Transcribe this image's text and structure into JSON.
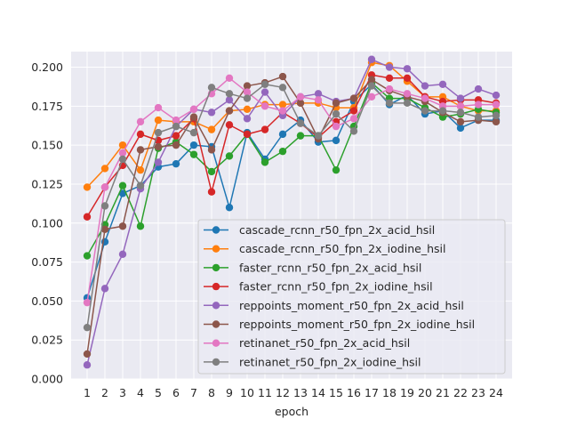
{
  "chart_data": {
    "type": "line",
    "title": "",
    "xlabel": "epoch",
    "ylabel": "",
    "x": [
      1,
      2,
      3,
      4,
      5,
      6,
      7,
      8,
      9,
      10,
      11,
      12,
      13,
      14,
      15,
      16,
      17,
      18,
      19,
      20,
      21,
      22,
      23,
      24
    ],
    "xlim": [
      0.1,
      24.9
    ],
    "ylim": [
      0.0,
      0.21
    ],
    "yticks": [
      "0.000",
      "0.025",
      "0.050",
      "0.075",
      "0.100",
      "0.125",
      "0.150",
      "0.175",
      "0.200"
    ],
    "grid": true,
    "legend_position": "lower-right",
    "series": [
      {
        "name": "cascade_rcnn_r50_fpn_2x_acid_hsil",
        "color": "#1f77b4",
        "values": [
          0.052,
          0.088,
          0.119,
          0.124,
          0.136,
          0.138,
          0.15,
          0.149,
          0.11,
          0.158,
          0.141,
          0.157,
          0.166,
          0.152,
          0.153,
          0.178,
          0.189,
          0.176,
          0.182,
          0.17,
          0.172,
          0.161,
          0.166,
          0.166
        ]
      },
      {
        "name": "cascade_rcnn_r50_fpn_2x_iodine_hsil",
        "color": "#ff7f0e",
        "values": [
          0.123,
          0.135,
          0.15,
          0.134,
          0.166,
          0.165,
          0.165,
          0.16,
          0.172,
          0.173,
          0.176,
          0.176,
          0.177,
          0.177,
          0.174,
          0.174,
          0.203,
          0.201,
          0.191,
          0.181,
          0.181,
          0.175,
          0.172,
          0.172
        ]
      },
      {
        "name": "faster_rcnn_r50_fpn_2x_acid_hsil",
        "color": "#2ca02c",
        "values": [
          0.079,
          0.099,
          0.124,
          0.098,
          0.148,
          0.152,
          0.144,
          0.133,
          0.143,
          0.157,
          0.139,
          0.146,
          0.156,
          0.156,
          0.134,
          0.162,
          0.19,
          0.18,
          0.18,
          0.174,
          0.168,
          0.17,
          0.173,
          0.171
        ]
      },
      {
        "name": "faster_rcnn_r50_fpn_2x_iodine_hsil",
        "color": "#d62728",
        "values": [
          0.104,
          0.123,
          0.137,
          0.157,
          0.153,
          0.156,
          0.167,
          0.12,
          0.163,
          0.157,
          0.16,
          0.171,
          0.164,
          0.155,
          0.165,
          0.172,
          0.195,
          0.193,
          0.193,
          0.181,
          0.178,
          0.179,
          0.179,
          0.177
        ]
      },
      {
        "name": "reppoints_moment_r50_fpn_2x_acid_hsil",
        "color": "#9467bd",
        "values": [
          0.009,
          0.058,
          0.08,
          0.122,
          0.139,
          0.162,
          0.173,
          0.171,
          0.179,
          0.167,
          0.184,
          0.169,
          0.181,
          0.183,
          0.178,
          0.18,
          0.205,
          0.2,
          0.199,
          0.188,
          0.189,
          0.18,
          0.186,
          0.182
        ]
      },
      {
        "name": "reppoints_moment_r50_fpn_2x_iodine_hsil",
        "color": "#8c564b",
        "values": [
          0.016,
          0.096,
          0.098,
          0.147,
          0.149,
          0.15,
          0.168,
          0.147,
          0.172,
          0.188,
          0.19,
          0.194,
          0.177,
          0.154,
          0.177,
          0.18,
          0.192,
          0.185,
          0.181,
          0.178,
          0.171,
          0.165,
          0.166,
          0.165
        ]
      },
      {
        "name": "retinanet_r50_fpn_2x_acid_hsil",
        "color": "#e377c2",
        "values": [
          0.049,
          0.123,
          0.145,
          0.165,
          0.174,
          0.166,
          0.173,
          0.183,
          0.193,
          0.184,
          0.175,
          0.172,
          0.181,
          0.179,
          0.162,
          0.167,
          0.181,
          0.186,
          0.183,
          0.18,
          0.175,
          0.175,
          0.176,
          0.176
        ]
      },
      {
        "name": "retinanet_r50_fpn_2x_iodine_hsil",
        "color": "#7f7f7f",
        "values": [
          0.033,
          0.111,
          0.141,
          0.124,
          0.158,
          0.162,
          0.158,
          0.187,
          0.183,
          0.18,
          0.189,
          0.187,
          0.164,
          0.156,
          0.17,
          0.159,
          0.188,
          0.177,
          0.177,
          0.172,
          0.172,
          0.171,
          0.168,
          0.169
        ]
      }
    ]
  }
}
